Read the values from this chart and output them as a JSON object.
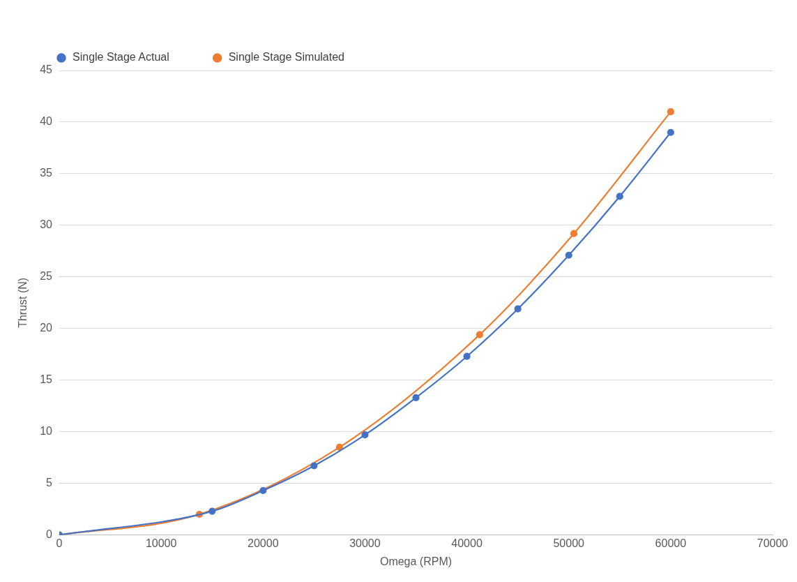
{
  "chart_data": {
    "type": "line",
    "xlabel": "Omega (RPM)",
    "ylabel": "Thrust (N)",
    "series": [
      {
        "name": "Single Stage Actual",
        "color": "#4472c4",
        "x": [
          0,
          15000,
          20000,
          25000,
          30000,
          35000,
          40000,
          45000,
          50000,
          55000,
          60000
        ],
        "values": [
          0,
          2.3,
          4.3,
          6.7,
          9.7,
          13.3,
          17.3,
          21.9,
          27.1,
          32.8,
          39.0
        ]
      },
      {
        "name": "Single Stage Simulated",
        "color": "#ed7d31",
        "x": [
          0,
          13750,
          27500,
          41250,
          50500,
          60000
        ],
        "values": [
          0,
          2.0,
          8.5,
          19.4,
          29.2,
          41.0
        ]
      }
    ],
    "xlim": [
      0,
      70000
    ],
    "xticks": [
      0,
      10000,
      20000,
      30000,
      40000,
      50000,
      60000,
      70000
    ],
    "ylim": [
      0,
      45
    ],
    "yticks": [
      0,
      5,
      10,
      15,
      20,
      25,
      30,
      35,
      40,
      45
    ],
    "grid": "y",
    "legend": "top left",
    "marker": "circle",
    "line_style": "solid"
  }
}
